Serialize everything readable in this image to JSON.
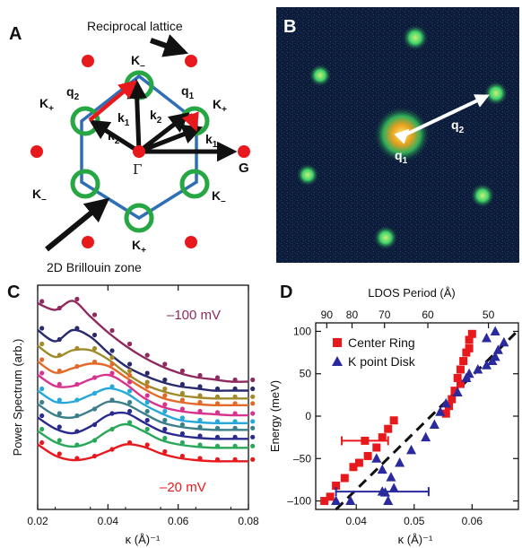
{
  "panels": {
    "a": {
      "label": "A",
      "reciprocal_lattice_label": "Reciprocal lattice",
      "brillouin_zone_label": "2D Brillouin zone",
      "gamma": "Γ",
      "g": "G",
      "k_minus": "K",
      "k_minus_sub": "–",
      "k_plus": "K",
      "k_plus_sub": "+",
      "q1": "q",
      "q2": "q",
      "k1": "k",
      "k2": "k",
      "sub1": "1",
      "sub2": "2",
      "colors": {
        "lattice_point": "#e8191c",
        "zone": "#2f6fb5",
        "ring": "#27a744",
        "arrow": "#111111",
        "q_arrow": "#e8191c"
      }
    },
    "b": {
      "label": "B",
      "q1": "q",
      "q2": "q",
      "sub1": "1",
      "sub2": "2",
      "colors": {
        "background": "#0b1a33",
        "spot": "#3fd46a",
        "center": "#ffd54a"
      }
    },
    "c": {
      "label": "C",
      "annotation_top": "–100 mV",
      "annotation_bottom": "–20 mV"
    },
    "d": {
      "label": "D"
    }
  },
  "chart_data": [
    {
      "type": "line",
      "panel": "C",
      "xlabel": "κ (Å)⁻¹",
      "ylabel": "Power Spectrum (arb.)",
      "xlim": [
        0.02,
        0.08
      ],
      "x_ticks": [
        "0.02",
        "0.04",
        "0.06",
        "0.08"
      ],
      "x_tick_values": [
        0.02,
        0.04,
        0.06,
        0.08
      ],
      "ylim": [
        0,
        10
      ],
      "series": [
        {
          "color": "#8e2a5e",
          "points": [
            [
              0.02,
              9.2
            ],
            [
              0.025,
              8.9
            ],
            [
              0.03,
              9.3
            ],
            [
              0.035,
              8.6
            ],
            [
              0.04,
              7.9
            ],
            [
              0.045,
              7.3
            ],
            [
              0.05,
              6.8
            ],
            [
              0.055,
              6.4
            ],
            [
              0.06,
              6.1
            ],
            [
              0.065,
              5.9
            ],
            [
              0.07,
              5.8
            ],
            [
              0.075,
              5.7
            ],
            [
              0.08,
              5.7
            ]
          ]
        },
        {
          "color": "#2a2a6e",
          "points": [
            [
              0.02,
              8.0
            ],
            [
              0.025,
              7.5
            ],
            [
              0.03,
              8.0
            ],
            [
              0.035,
              7.7
            ],
            [
              0.04,
              7.0
            ],
            [
              0.045,
              6.4
            ],
            [
              0.05,
              6.0
            ],
            [
              0.055,
              5.7
            ],
            [
              0.06,
              5.5
            ],
            [
              0.065,
              5.4
            ],
            [
              0.07,
              5.3
            ],
            [
              0.075,
              5.3
            ],
            [
              0.08,
              5.3
            ]
          ]
        },
        {
          "color": "#a08a2a",
          "points": [
            [
              0.02,
              7.3
            ],
            [
              0.025,
              6.8
            ],
            [
              0.03,
              7.1
            ],
            [
              0.035,
              7.1
            ],
            [
              0.04,
              6.7
            ],
            [
              0.045,
              6.1
            ],
            [
              0.05,
              5.6
            ],
            [
              0.055,
              5.3
            ],
            [
              0.06,
              5.1
            ],
            [
              0.065,
              5.0
            ],
            [
              0.07,
              4.95
            ],
            [
              0.075,
              4.95
            ],
            [
              0.08,
              4.95
            ]
          ]
        },
        {
          "color": "#e36a2a",
          "points": [
            [
              0.02,
              6.6
            ],
            [
              0.025,
              6.1
            ],
            [
              0.03,
              6.3
            ],
            [
              0.035,
              6.5
            ],
            [
              0.04,
              6.4
            ],
            [
              0.045,
              5.9
            ],
            [
              0.05,
              5.4
            ],
            [
              0.055,
              5.0
            ],
            [
              0.06,
              4.8
            ],
            [
              0.065,
              4.7
            ],
            [
              0.07,
              4.65
            ],
            [
              0.075,
              4.65
            ],
            [
              0.08,
              4.65
            ]
          ]
        },
        {
          "color": "#d8338f",
          "points": [
            [
              0.02,
              6.0
            ],
            [
              0.025,
              5.5
            ],
            [
              0.03,
              5.5
            ],
            [
              0.035,
              5.8
            ],
            [
              0.04,
              6.0
            ],
            [
              0.045,
              5.6
            ],
            [
              0.05,
              5.0
            ],
            [
              0.055,
              4.6
            ],
            [
              0.06,
              4.4
            ],
            [
              0.065,
              4.3
            ],
            [
              0.07,
              4.25
            ],
            [
              0.075,
              4.2
            ],
            [
              0.08,
              4.2
            ]
          ]
        },
        {
          "color": "#28a8d8",
          "points": [
            [
              0.02,
              5.3
            ],
            [
              0.025,
              4.8
            ],
            [
              0.03,
              4.8
            ],
            [
              0.035,
              5.1
            ],
            [
              0.04,
              5.4
            ],
            [
              0.045,
              5.2
            ],
            [
              0.05,
              4.7
            ],
            [
              0.055,
              4.3
            ],
            [
              0.06,
              4.0
            ],
            [
              0.065,
              3.9
            ],
            [
              0.07,
              3.85
            ],
            [
              0.075,
              3.85
            ],
            [
              0.08,
              3.85
            ]
          ]
        },
        {
          "color": "#3a7f8a",
          "points": [
            [
              0.02,
              4.7
            ],
            [
              0.025,
              4.2
            ],
            [
              0.03,
              4.1
            ],
            [
              0.035,
              4.4
            ],
            [
              0.04,
              4.8
            ],
            [
              0.045,
              4.7
            ],
            [
              0.05,
              4.3
            ],
            [
              0.055,
              3.9
            ],
            [
              0.06,
              3.7
            ],
            [
              0.065,
              3.6
            ],
            [
              0.07,
              3.55
            ],
            [
              0.075,
              3.55
            ],
            [
              0.08,
              3.55
            ]
          ]
        },
        {
          "color": "#2a2a8e",
          "points": [
            [
              0.02,
              4.1
            ],
            [
              0.025,
              3.6
            ],
            [
              0.03,
              3.4
            ],
            [
              0.035,
              3.7
            ],
            [
              0.04,
              4.2
            ],
            [
              0.045,
              4.3
            ],
            [
              0.05,
              3.9
            ],
            [
              0.055,
              3.5
            ],
            [
              0.06,
              3.3
            ],
            [
              0.065,
              3.2
            ],
            [
              0.07,
              3.15
            ],
            [
              0.075,
              3.15
            ],
            [
              0.08,
              3.15
            ]
          ]
        },
        {
          "color": "#2aa85a",
          "points": [
            [
              0.02,
              3.5
            ],
            [
              0.025,
              3.0
            ],
            [
              0.03,
              2.8
            ],
            [
              0.035,
              3.0
            ],
            [
              0.04,
              3.5
            ],
            [
              0.045,
              3.8
            ],
            [
              0.05,
              3.5
            ],
            [
              0.055,
              3.1
            ],
            [
              0.06,
              2.9
            ],
            [
              0.065,
              2.8
            ],
            [
              0.07,
              2.75
            ],
            [
              0.075,
              2.75
            ],
            [
              0.08,
              2.75
            ]
          ]
        },
        {
          "color": "#e8191c",
          "points": [
            [
              0.02,
              2.9
            ],
            [
              0.025,
              2.4
            ],
            [
              0.03,
              2.2
            ],
            [
              0.035,
              2.3
            ],
            [
              0.04,
              2.6
            ],
            [
              0.045,
              2.9
            ],
            [
              0.05,
              2.8
            ],
            [
              0.055,
              2.5
            ],
            [
              0.06,
              2.3
            ],
            [
              0.065,
              2.2
            ],
            [
              0.07,
              2.15
            ],
            [
              0.075,
              2.15
            ],
            [
              0.08,
              2.15
            ]
          ]
        }
      ]
    },
    {
      "type": "scatter",
      "panel": "D",
      "xlabel": "κ (Å)⁻¹",
      "ylabel": "Energy (meV)",
      "top_xlabel": "LDOS Period (Å)",
      "xlim": [
        0.033,
        0.068
      ],
      "ylim": [
        -110,
        110
      ],
      "x_ticks": [
        "0.04",
        "0.05",
        "0.06"
      ],
      "x_tick_values": [
        0.04,
        0.05,
        0.06
      ],
      "y_ticks": [
        "100",
        "50",
        "0",
        "–50",
        "–100"
      ],
      "y_tick_values": [
        100,
        50,
        0,
        -50,
        -100
      ],
      "top_ticks": [
        "90",
        "80",
        "70",
        "60",
        "50"
      ],
      "top_tick_values": [
        0.03491,
        0.03927,
        0.04488,
        0.05236,
        0.06283
      ],
      "legend": "top-left",
      "series": [
        {
          "name": "Center Ring",
          "marker": "square",
          "color": "#e8191c",
          "points": [
            [
              0.0345,
              -100
            ],
            [
              0.0355,
              -95
            ],
            [
              0.0365,
              -82
            ],
            [
              0.038,
              -73
            ],
            [
              0.0395,
              -60
            ],
            [
              0.0405,
              -55
            ],
            [
              0.042,
              -47
            ],
            [
              0.0435,
              -37
            ],
            [
              0.0445,
              -25
            ],
            [
              0.0455,
              -15
            ],
            [
              0.0465,
              -5
            ],
            [
              0.0555,
              3
            ],
            [
              0.056,
              12
            ],
            [
              0.0565,
              20
            ],
            [
              0.057,
              30
            ],
            [
              0.0575,
              45
            ],
            [
              0.058,
              55
            ],
            [
              0.0585,
              65
            ],
            [
              0.059,
              75
            ],
            [
              0.0595,
              90
            ],
            [
              0.06,
              97
            ],
            [
              0.0595,
              80
            ],
            [
              0.058,
              38
            ]
          ],
          "error_bar": {
            "x": 0.0415,
            "y": -29,
            "x_min": 0.0375,
            "x_max": 0.0455
          }
        },
        {
          "name": "K point Disk",
          "marker": "triangle",
          "color": "#2a2a9e",
          "points": [
            [
              0.0365,
              -100
            ],
            [
              0.039,
              -100
            ],
            [
              0.0435,
              -50
            ],
            [
              0.0445,
              -63
            ],
            [
              0.046,
              -72
            ],
            [
              0.0465,
              -85
            ],
            [
              0.0455,
              -100
            ],
            [
              0.045,
              -90
            ],
            [
              0.0475,
              -55
            ],
            [
              0.0495,
              -40
            ],
            [
              0.052,
              -25
            ],
            [
              0.0535,
              -10
            ],
            [
              0.0545,
              5
            ],
            [
              0.0555,
              15
            ],
            [
              0.0575,
              28
            ],
            [
              0.059,
              45
            ],
            [
              0.0595,
              50
            ],
            [
              0.061,
              55
            ],
            [
              0.0625,
              60
            ],
            [
              0.0635,
              65
            ],
            [
              0.064,
              70
            ],
            [
              0.0645,
              78
            ],
            [
              0.0655,
              87
            ],
            [
              0.0625,
              92
            ],
            [
              0.064,
              100
            ]
          ],
          "error_bar": {
            "x": 0.0445,
            "y": -89,
            "x_min": 0.0365,
            "x_max": 0.0525
          }
        }
      ],
      "fit_line": {
        "style": "dashed",
        "points": [
          [
            0.0365,
            -110
          ],
          [
            0.0675,
            98
          ]
        ]
      }
    }
  ]
}
